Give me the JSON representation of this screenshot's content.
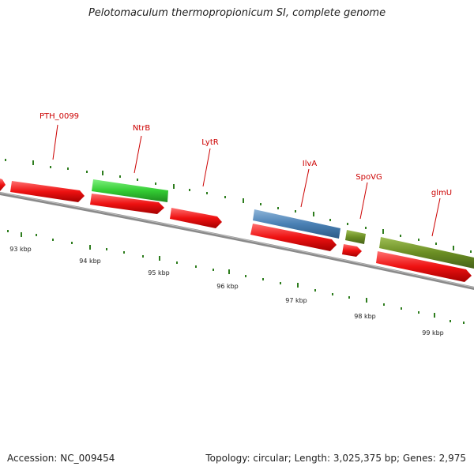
{
  "title": "Pelotomaculum thermopropionicum SI, complete genome",
  "footer": {
    "accession": "Accession: NC_009454",
    "stats": "Topology: circular; Length: 3,025,375 bp; Genes: 2,975"
  },
  "colors": {
    "gene_label": "#cc0000",
    "tick": "#2e7d1e",
    "backbone": "#7f7f7f",
    "cds": "#ee1111",
    "green_gene": "#33cc33",
    "blue_gene": "#4a80b4",
    "olive_gene": "#6b8e23"
  },
  "scale": {
    "kbp_labels": [
      "93 kbp",
      "94 kbp",
      "95 kbp",
      "96 kbp",
      "97 kbp",
      "98 kbp",
      "99 kbp"
    ]
  },
  "genes": {
    "pth_0099": "PTH_0099",
    "ntrb": "NtrB",
    "lytr": "LytR",
    "ilva": "IlvA",
    "spovg": "SpoVG",
    "glmu": "glmU"
  }
}
